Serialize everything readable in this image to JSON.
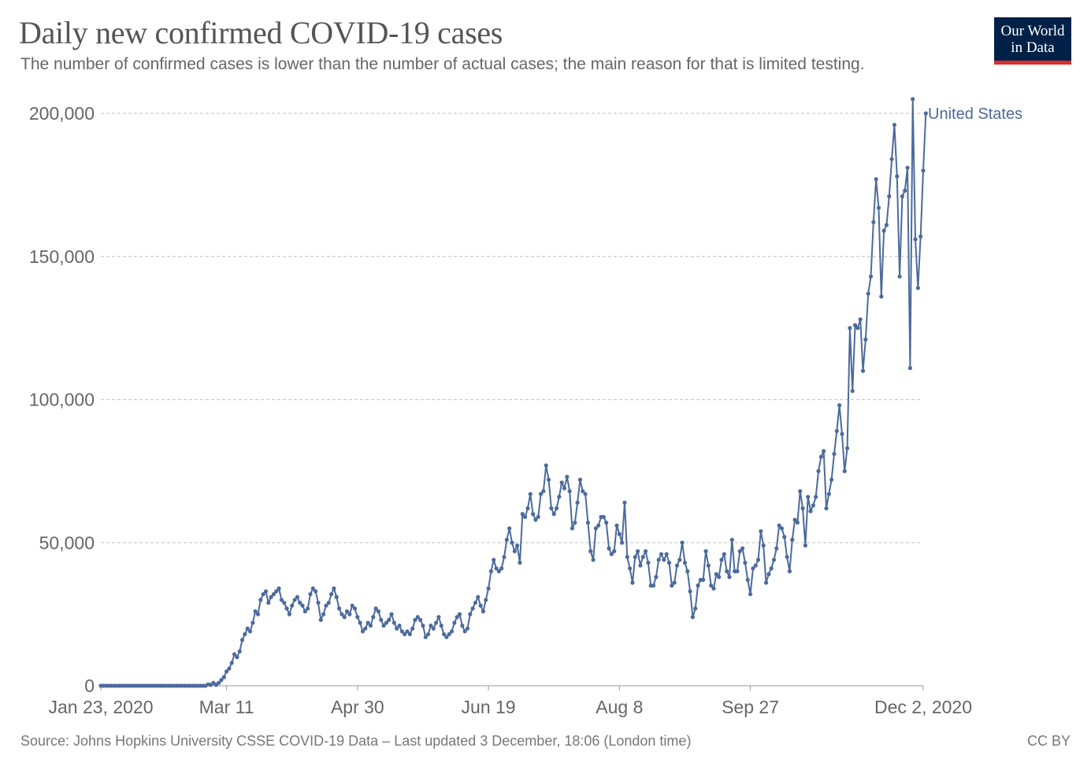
{
  "header": {
    "title": "Daily new confirmed COVID-19 cases",
    "subtitle": "The number of confirmed cases is lower than the number of actual cases; the main reason for that is limited testing."
  },
  "logo": {
    "line1": "Our World",
    "line2": "in Data"
  },
  "footer": {
    "source": "Source: Johns Hopkins University CSSE COVID-19 Data – Last updated 3 December, 18:06 (London time)",
    "license": "CC BY"
  },
  "colors": {
    "series": "#4c6a9c",
    "grid": "#cccccc",
    "text": "#666666"
  },
  "chart_data": {
    "type": "line",
    "title": "Daily new confirmed COVID-19 cases",
    "xlabel": "",
    "ylabel": "",
    "ylim": [
      0,
      200000
    ],
    "y_ticks": [
      {
        "value": 0,
        "label": "0"
      },
      {
        "value": 50000,
        "label": "50,000"
      },
      {
        "value": 100000,
        "label": "100,000"
      },
      {
        "value": 150000,
        "label": "150,000"
      },
      {
        "value": 200000,
        "label": "200,000"
      }
    ],
    "x_start": "Jan 23, 2020",
    "x_ticks": [
      {
        "day": 0,
        "label": "Jan 23, 2020"
      },
      {
        "day": 48,
        "label": "Mar 11"
      },
      {
        "day": 98,
        "label": "Apr 30"
      },
      {
        "day": 148,
        "label": "Jun 19"
      },
      {
        "day": 198,
        "label": "Aug 8"
      },
      {
        "day": 248,
        "label": "Sep 27"
      },
      {
        "day": 314,
        "label": "Dec 2, 2020"
      }
    ],
    "grid": true,
    "legend": "end-of-line",
    "series": [
      {
        "name": "United States",
        "start_day": 0,
        "values": [
          0,
          0,
          0,
          0,
          0,
          0,
          0,
          0,
          0,
          0,
          0,
          0,
          0,
          0,
          0,
          0,
          0,
          0,
          0,
          0,
          0,
          0,
          0,
          0,
          0,
          0,
          0,
          0,
          0,
          0,
          0,
          0,
          0,
          0,
          0,
          0,
          0,
          0,
          0,
          0,
          0,
          500,
          300,
          1000,
          300,
          1000,
          2000,
          3000,
          5000,
          6000,
          8000,
          11000,
          10000,
          12000,
          16000,
          18000,
          20000,
          19000,
          22000,
          26000,
          25000,
          30000,
          32000,
          33000,
          29000,
          31000,
          32000,
          33000,
          34000,
          30000,
          29000,
          27000,
          25000,
          28000,
          30000,
          31000,
          29000,
          28000,
          26000,
          27000,
          32000,
          34000,
          33000,
          29000,
          23000,
          25000,
          28000,
          29000,
          32000,
          34000,
          31000,
          27000,
          25000,
          24000,
          26000,
          25000,
          28000,
          27000,
          24000,
          22000,
          19000,
          20000,
          22000,
          21000,
          24000,
          27000,
          26000,
          23000,
          21000,
          22000,
          23000,
          25000,
          22000,
          20000,
          21000,
          19000,
          18000,
          19000,
          18000,
          20000,
          23000,
          24000,
          23000,
          21000,
          17000,
          18000,
          21000,
          20000,
          22000,
          24000,
          21000,
          18000,
          17000,
          18000,
          19000,
          22000,
          24000,
          25000,
          21000,
          19000,
          20000,
          25000,
          27000,
          29000,
          31000,
          28000,
          26000,
          30000,
          34000,
          40000,
          44000,
          41000,
          40000,
          41000,
          45000,
          51000,
          55000,
          50000,
          47000,
          49000,
          43000,
          60000,
          59000,
          62000,
          67000,
          60000,
          58000,
          59000,
          67000,
          68000,
          77000,
          72000,
          62000,
          60000,
          62000,
          66000,
          71000,
          69000,
          73000,
          68000,
          55000,
          57000,
          64000,
          72000,
          68000,
          67000,
          57000,
          47000,
          44000,
          55000,
          56000,
          59000,
          59000,
          57000,
          48000,
          46000,
          47000,
          56000,
          53000,
          50000,
          64000,
          45000,
          41000,
          36000,
          45000,
          47000,
          42000,
          45000,
          47000,
          43000,
          35000,
          35000,
          38000,
          44000,
          46000,
          44000,
          46000,
          43000,
          35000,
          36000,
          42000,
          44000,
          50000,
          43000,
          40000,
          33000,
          24000,
          27000,
          35000,
          37000,
          37000,
          47000,
          42000,
          35000,
          34000,
          39000,
          38000,
          44000,
          46000,
          40000,
          38000,
          51000,
          40000,
          40000,
          47000,
          48000,
          43000,
          37000,
          32000,
          41000,
          42000,
          44000,
          54000,
          49000,
          36000,
          39000,
          41000,
          44000,
          48000,
          56000,
          55000,
          52000,
          45000,
          40000,
          51000,
          58000,
          57000,
          68000,
          62000,
          49000,
          66000,
          61000,
          63000,
          66000,
          75000,
          80000,
          82000,
          62000,
          67000,
          72000,
          81000,
          89000,
          98000,
          88000,
          75000,
          83000,
          125000,
          103000,
          126000,
          125000,
          128000,
          110000,
          121000,
          137000,
          143000,
          162000,
          177000,
          167000,
          136000,
          159000,
          161000,
          171000,
          184000,
          196000,
          178000,
          143000,
          171000,
          173000,
          181000,
          111000,
          205000,
          156000,
          139000,
          157000,
          180000,
          200000
        ]
      }
    ]
  }
}
